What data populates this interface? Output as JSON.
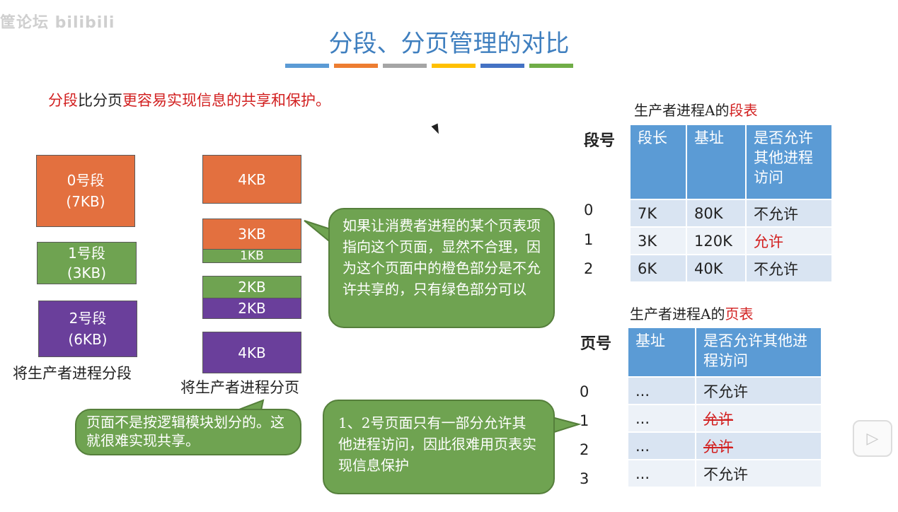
{
  "watermark": "筐论坛 bilibili",
  "title": "分段、分页管理的对比",
  "title_bar_colors": [
    "#5b9bd5",
    "#ed7d31",
    "#a5a5a5",
    "#ffc000",
    "#4472c4",
    "#70ad47"
  ],
  "intro": {
    "part1": "分段",
    "part2": "比分页",
    "part3": "更容易实现信息的共享和保护。"
  },
  "segments": [
    {
      "line1": "0号段",
      "line2": "(7KB)"
    },
    {
      "line1": "1号段",
      "line2": "(3KB)"
    },
    {
      "line1": "2号段",
      "line2": "(6KB)"
    }
  ],
  "segments_caption": "将生产者进程分段",
  "pages": [
    "4KB",
    "3KB",
    "1KB",
    "2KB",
    "2KB",
    "4KB"
  ],
  "pages_caption": "将生产者进程分页",
  "bubble_consumer": "如果让消费者进程的某个页表项指向这个页面，显然不合理，因为这个页面中的橙色部分是不允许共享的，只有绿色部分可以",
  "bubble_pages": "页面不是按逻辑模块划分的。这就很难实现共享。",
  "bubble_protect": "1、2号页面只有一部分允许其他进程访问，因此很难用页表实现信息保护",
  "segment_table": {
    "caption_prefix": "生产者进程A的",
    "caption_suffix": "段表",
    "row_header": "段号",
    "headers": [
      "段长",
      "基址",
      "是否允许其他进程访问"
    ],
    "rows": [
      {
        "no": "0",
        "cells": [
          "7K",
          "80K",
          "不允许"
        ]
      },
      {
        "no": "1",
        "cells": [
          "3K",
          "120K",
          "允许"
        ]
      },
      {
        "no": "2",
        "cells": [
          "6K",
          "40K",
          "不允许"
        ]
      }
    ]
  },
  "page_table": {
    "caption_prefix": "生产者进程A的",
    "caption_suffix": "页表",
    "row_header": "页号",
    "headers": [
      "基址",
      "是否允许其他进程访问"
    ],
    "rows": [
      {
        "no": "0",
        "cells": [
          "...",
          "不允许"
        ]
      },
      {
        "no": "1",
        "cells": [
          "...",
          "允许"
        ]
      },
      {
        "no": "2",
        "cells": [
          "...",
          "允许"
        ]
      },
      {
        "no": "3",
        "cells": [
          "...",
          "不允许"
        ]
      }
    ]
  },
  "icons": {
    "play": "play-icon",
    "cursor": "cursor-icon"
  }
}
